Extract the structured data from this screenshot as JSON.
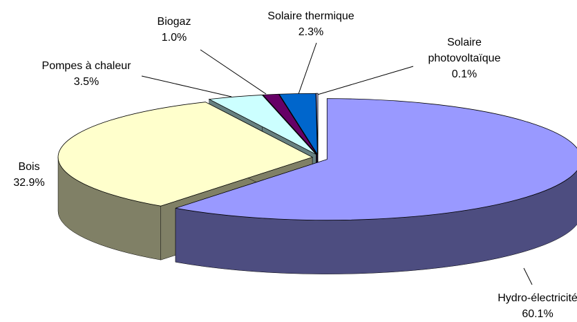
{
  "chart_data": {
    "type": "pie3d",
    "categories": [
      "Hydro-électricité",
      "Bois",
      "Pompes à chaleur",
      "Biogaz",
      "Solaire thermique",
      "Solaire photovoltaïque"
    ],
    "values": [
      60.1,
      32.9,
      3.5,
      1.0,
      2.3,
      0.1
    ],
    "value_labels": [
      "60.1%",
      "32.9%",
      "3.5%",
      "1.0%",
      "2.3%",
      "0.1%"
    ],
    "colors": [
      "#9999ff",
      "#ffffcc",
      "#ccffff",
      "#660066",
      "#0066cc",
      "#ccccff"
    ]
  }
}
